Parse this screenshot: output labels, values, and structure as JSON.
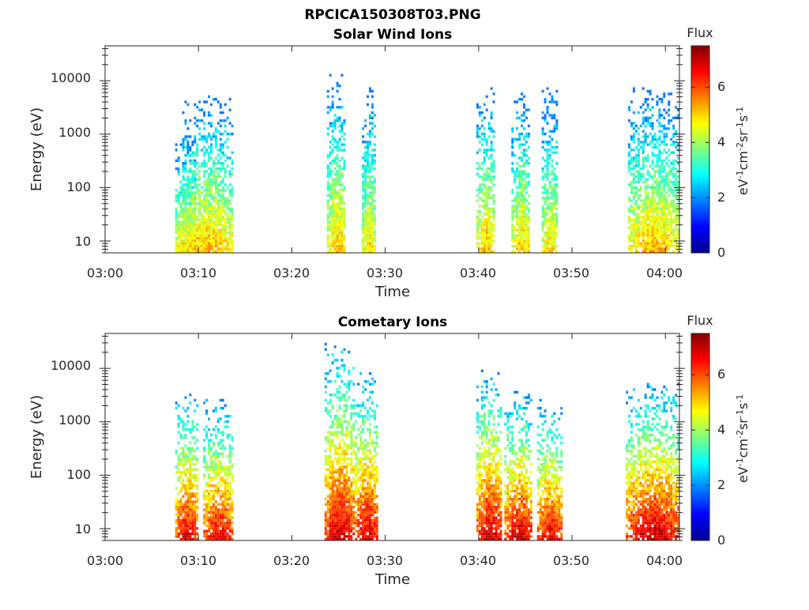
{
  "figure": {
    "title": "RPCICA150308T03.PNG"
  },
  "chart_data": [
    {
      "type": "heatmap",
      "title": "Solar Wind Ions",
      "xlabel": "Time",
      "ylabel": "Energy (eV)",
      "y_scale": "log",
      "xlim": [
        "03:00",
        "04:01:30"
      ],
      "ylim": [
        6,
        45000
      ],
      "x_ticks": [
        "03:00",
        "03:10",
        "03:20",
        "03:30",
        "03:40",
        "03:50",
        "04:00"
      ],
      "y_ticks": [
        "10",
        "100",
        "1000",
        "10000"
      ],
      "y_tick_values": [
        10,
        100,
        1000,
        10000
      ],
      "colorbar": {
        "label": "Flux",
        "unit_label": "eV-1cm-2sr-1s-1",
        "range": [
          0,
          7.5
        ],
        "ticks": [
          "0",
          "2",
          "4",
          "6"
        ],
        "tick_values": [
          0,
          2,
          4,
          6
        ],
        "colormap": "jet"
      },
      "bursts": [
        {
          "start": "03:07:30",
          "end": "03:09:45",
          "peak_log_flux": 5.2,
          "max_energy_eV": 700
        },
        {
          "start": "03:08:15",
          "end": "03:13:45",
          "peak_log_flux": 5.3,
          "max_energy_eV": 5000
        },
        {
          "start": "03:23:45",
          "end": "03:25:45",
          "peak_log_flux": 5.2,
          "max_energy_eV": 15000
        },
        {
          "start": "03:27:30",
          "end": "03:29:00",
          "peak_log_flux": 5.0,
          "max_energy_eV": 8000
        },
        {
          "start": "03:39:45",
          "end": "03:41:45",
          "peak_log_flux": 5.3,
          "max_energy_eV": 7000
        },
        {
          "start": "03:43:30",
          "end": "03:45:30",
          "peak_log_flux": 5.2,
          "max_energy_eV": 6000
        },
        {
          "start": "03:46:45",
          "end": "03:48:30",
          "peak_log_flux": 5.0,
          "max_energy_eV": 7000
        },
        {
          "start": "03:56:00",
          "end": "04:01:30",
          "peak_log_flux": 5.3,
          "max_energy_eV": 7000
        }
      ]
    },
    {
      "type": "heatmap",
      "title": "Cometary Ions",
      "xlabel": "Time",
      "ylabel": "Energy (eV)",
      "y_scale": "log",
      "xlim": [
        "03:00",
        "04:01:30"
      ],
      "ylim": [
        6,
        45000
      ],
      "x_ticks": [
        "03:00",
        "03:10",
        "03:20",
        "03:30",
        "03:40",
        "03:50",
        "04:00"
      ],
      "y_ticks": [
        "10",
        "100",
        "1000",
        "10000"
      ],
      "y_tick_values": [
        10,
        100,
        1000,
        10000
      ],
      "colorbar": {
        "label": "Flux",
        "unit_label": "eV-1cm-2sr-1s-1",
        "range": [
          0,
          7.5
        ],
        "ticks": [
          "0",
          "2",
          "4",
          "6"
        ],
        "tick_values": [
          0,
          2,
          4,
          6
        ],
        "colormap": "jet"
      },
      "bursts": [
        {
          "start": "03:07:30",
          "end": "03:10:00",
          "peak_log_flux": 6.8,
          "max_energy_eV": 3500
        },
        {
          "start": "03:10:30",
          "end": "03:13:45",
          "peak_log_flux": 6.8,
          "max_energy_eV": 2500
        },
        {
          "start": "03:23:30",
          "end": "03:26:45",
          "peak_log_flux": 7.0,
          "max_energy_eV": 30000
        },
        {
          "start": "03:26:45",
          "end": "03:29:15",
          "peak_log_flux": 7.0,
          "max_energy_eV": 9000
        },
        {
          "start": "03:39:45",
          "end": "03:42:30",
          "peak_log_flux": 7.0,
          "max_energy_eV": 10000
        },
        {
          "start": "03:42:45",
          "end": "03:45:45",
          "peak_log_flux": 7.0,
          "max_energy_eV": 3500
        },
        {
          "start": "03:46:15",
          "end": "03:49:00",
          "peak_log_flux": 6.8,
          "max_energy_eV": 2500
        },
        {
          "start": "03:55:45",
          "end": "04:01:30",
          "peak_log_flux": 7.1,
          "max_energy_eV": 5000
        }
      ]
    }
  ]
}
